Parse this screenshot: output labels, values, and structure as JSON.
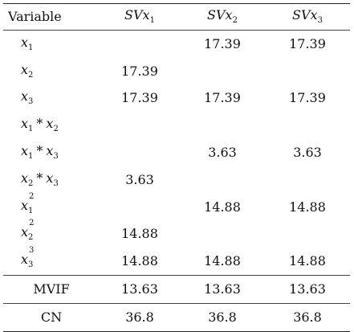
{
  "header": {
    "col0": "Variable",
    "col1": {
      "base": "SVx",
      "sub": "1"
    },
    "col2": {
      "base": "SVx",
      "sub": "2"
    },
    "col3": {
      "base": "SVx",
      "sub": "3"
    }
  },
  "rows": [
    {
      "var": {
        "type": "single",
        "a": "x",
        "a_sub": "1"
      },
      "v1": "",
      "v2": "17.39",
      "v3": "17.39"
    },
    {
      "var": {
        "type": "single",
        "a": "x",
        "a_sub": "2"
      },
      "v1": "17.39",
      "v2": "",
      "v3": ""
    },
    {
      "var": {
        "type": "single",
        "a": "x",
        "a_sub": "3"
      },
      "v1": "17.39",
      "v2": "17.39",
      "v3": "17.39"
    },
    {
      "var": {
        "type": "product",
        "a": "x",
        "a_sub": "1",
        "op": "*",
        "b": "x",
        "b_sub": "2"
      },
      "v1": "",
      "v2": "",
      "v3": ""
    },
    {
      "var": {
        "type": "product",
        "a": "x",
        "a_sub": "1",
        "op": "*",
        "b": "x",
        "b_sub": "3"
      },
      "v1": "",
      "v2": "3.63",
      "v3": "3.63"
    },
    {
      "var": {
        "type": "product",
        "a": "x",
        "a_sub": "2",
        "op": "*",
        "b": "x",
        "b_sub": "3"
      },
      "v1": "3.63",
      "v2": "",
      "v3": ""
    },
    {
      "var": {
        "type": "power",
        "a": "x",
        "a_sub": "1",
        "sup": "2"
      },
      "v1": "",
      "v2": "14.88",
      "v3": "14.88"
    },
    {
      "var": {
        "type": "power",
        "a": "x",
        "a_sub": "2",
        "sup": "2"
      },
      "v1": "14.88",
      "v2": "",
      "v3": ""
    },
    {
      "var": {
        "type": "power",
        "a": "x",
        "a_sub": "3",
        "sup": "3"
      },
      "v1": "14.88",
      "v2": "14.88",
      "v3": "14.88"
    }
  ],
  "summary": [
    {
      "label": "MVIF",
      "v1": "13.63",
      "v2": "13.63",
      "v3": "13.63"
    },
    {
      "label": "CN",
      "v1": "36.8",
      "v2": "36.8",
      "v3": "36.8"
    }
  ]
}
